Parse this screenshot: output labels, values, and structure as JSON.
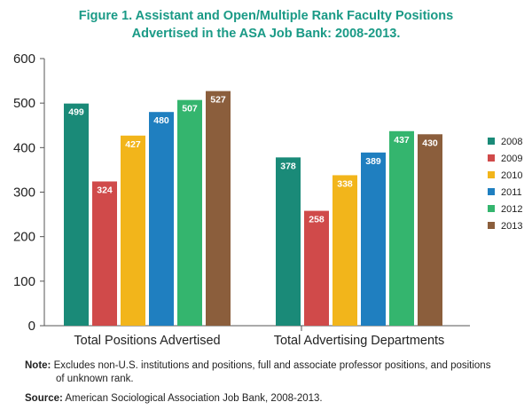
{
  "title": {
    "line1": "Figure 1. Assistant and Open/Multiple Rank Faculty Positions",
    "line2": "Advertised in the ASA Job Bank: 2008-2013."
  },
  "chart_data": {
    "type": "bar",
    "categories": [
      "Total Positions Advertised",
      "Total Advertising Departments"
    ],
    "series": [
      {
        "name": "2008",
        "color": "#1a8a78",
        "values": [
          499,
          378
        ]
      },
      {
        "name": "2009",
        "color": "#d04a4a",
        "values": [
          324,
          258
        ]
      },
      {
        "name": "2010",
        "color": "#f2b51b",
        "values": [
          427,
          338
        ]
      },
      {
        "name": "2011",
        "color": "#1f7fc0",
        "values": [
          480,
          389
        ]
      },
      {
        "name": "2012",
        "color": "#34b56e",
        "values": [
          507,
          437
        ]
      },
      {
        "name": "2013",
        "color": "#8b5e3c",
        "values": [
          527,
          430
        ]
      }
    ],
    "ylim": [
      0,
      600
    ],
    "yticks": [
      "0",
      "100",
      "200",
      "300",
      "400",
      "500",
      "600"
    ],
    "grid": false,
    "legend": "right"
  },
  "notes": {
    "note_label": "Note:",
    "note_text1": "Excludes non-U.S. institutions and positions, full and associate professor positions, and positions",
    "note_text2": "of unknown rank.",
    "source_label": "Source:",
    "source_text": "American Sociological Association Job Bank, 2008-2013."
  }
}
